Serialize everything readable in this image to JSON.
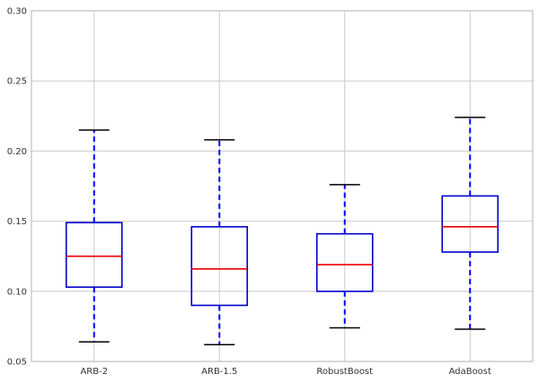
{
  "chart_data": {
    "type": "boxplot",
    "title": "",
    "xlabel": "",
    "ylabel": "",
    "ylim": [
      0.05,
      0.3
    ],
    "yticks": [
      "0.05",
      "0.10",
      "0.15",
      "0.20",
      "0.25",
      "0.30"
    ],
    "grid": true,
    "categories": [
      "ARB-2",
      "ARB-1.5",
      "RobustBoost",
      "AdaBoost"
    ],
    "boxes": [
      {
        "category": "ARB-2",
        "whisker_low": 0.064,
        "q1": 0.103,
        "median": 0.125,
        "q3": 0.149,
        "whisker_high": 0.215
      },
      {
        "category": "ARB-1.5",
        "whisker_low": 0.062,
        "q1": 0.09,
        "median": 0.116,
        "q3": 0.146,
        "whisker_high": 0.208
      },
      {
        "category": "RobustBoost",
        "whisker_low": 0.074,
        "q1": 0.1,
        "median": 0.119,
        "q3": 0.141,
        "whisker_high": 0.176
      },
      {
        "category": "AdaBoost",
        "whisker_low": 0.073,
        "q1": 0.128,
        "median": 0.146,
        "q3": 0.168,
        "whisker_high": 0.224
      }
    ],
    "colors": {
      "box": "#0000cc",
      "whisker": "#0000ff",
      "median": "#ee0000",
      "cap": "#000000",
      "grid": "#cbcbcb",
      "frame": "#b0b0b0"
    }
  }
}
